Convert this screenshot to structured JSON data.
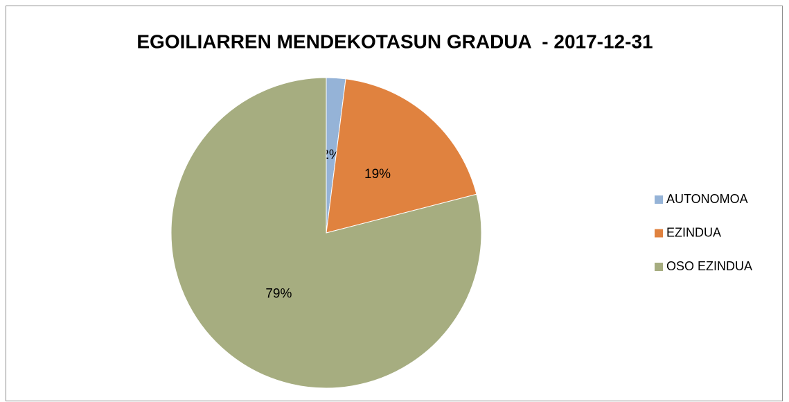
{
  "chart_data": {
    "type": "pie",
    "title": "EGOILIARREN MENDEKOTASUN GRADUA  - 2017-12-31",
    "categories": [
      "AUTONOMOA",
      "EZINDUA",
      "OSO EZINDUA"
    ],
    "values": [
      2,
      19,
      79
    ],
    "value_labels": [
      "2%",
      "19%",
      "79%"
    ],
    "colors": [
      "#95b3d7",
      "#e0823f",
      "#a6ad80"
    ],
    "legend": "right"
  }
}
